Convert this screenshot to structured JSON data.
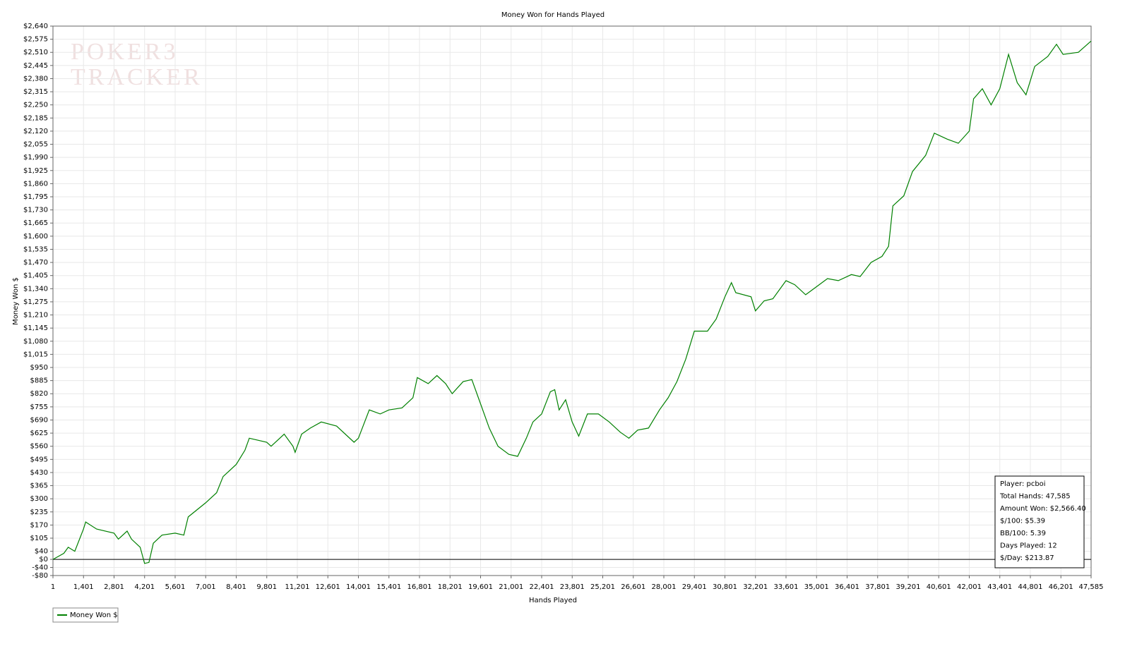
{
  "chart_data": {
    "type": "line",
    "title": "Money Won for Hands Played",
    "watermark": [
      "POKER3",
      "TRACKER"
    ],
    "xlabel": "Hands Played",
    "ylabel": "Money Won $",
    "xlim": [
      1,
      47585
    ],
    "ylim": [
      -80,
      2640
    ],
    "grid": true,
    "legend": "bottom-left",
    "xticks": [
      1,
      {
        "value": 1401,
        "label": "1,401"
      },
      {
        "value": 2801,
        "label": "2,801"
      },
      {
        "value": 4201,
        "label": "4,201"
      },
      {
        "value": 5601,
        "label": "5,601"
      },
      {
        "value": 7001,
        "label": "7,001"
      },
      {
        "value": 8401,
        "label": "8,401"
      },
      {
        "value": 9801,
        "label": "9,801"
      },
      {
        "value": 11201,
        "label": "11,201"
      },
      {
        "value": 12601,
        "label": "12,601"
      },
      {
        "value": 14001,
        "label": "14,001"
      },
      {
        "value": 15401,
        "label": "15,401"
      },
      {
        "value": 16801,
        "label": "16,801"
      },
      {
        "value": 18201,
        "label": "18,201"
      },
      {
        "value": 19601,
        "label": "19,601"
      },
      {
        "value": 21001,
        "label": "21,001"
      },
      {
        "value": 22401,
        "label": "22,401"
      },
      {
        "value": 23801,
        "label": "23,801"
      },
      {
        "value": 25201,
        "label": "25,201"
      },
      {
        "value": 26601,
        "label": "26,601"
      },
      {
        "value": 28001,
        "label": "28,001"
      },
      {
        "value": 29401,
        "label": "29,401"
      },
      {
        "value": 30801,
        "label": "30,801"
      },
      {
        "value": 32201,
        "label": "32,201"
      },
      {
        "value": 33601,
        "label": "33,601"
      },
      {
        "value": 35001,
        "label": "35,001"
      },
      {
        "value": 36401,
        "label": "36,401"
      },
      {
        "value": 37801,
        "label": "37,801"
      },
      {
        "value": 39201,
        "label": "39,201"
      },
      {
        "value": 40601,
        "label": "40,601"
      },
      {
        "value": 42001,
        "label": "42,001"
      },
      {
        "value": 43401,
        "label": "43,401"
      },
      {
        "value": 44801,
        "label": "44,801"
      },
      {
        "value": 46201,
        "label": "46,201"
      },
      {
        "value": 47585,
        "label": "47,585"
      }
    ],
    "yticks": [
      {
        "value": 2640,
        "label": "$2,640"
      },
      {
        "value": 2575,
        "label": "$2,575"
      },
      {
        "value": 2510,
        "label": "$2,510"
      },
      {
        "value": 2445,
        "label": "$2,445"
      },
      {
        "value": 2380,
        "label": "$2,380"
      },
      {
        "value": 2315,
        "label": "$2,315"
      },
      {
        "value": 2250,
        "label": "$2,250"
      },
      {
        "value": 2185,
        "label": "$2,185"
      },
      {
        "value": 2120,
        "label": "$2,120"
      },
      {
        "value": 2055,
        "label": "$2,055"
      },
      {
        "value": 1990,
        "label": "$1,990"
      },
      {
        "value": 1925,
        "label": "$1,925"
      },
      {
        "value": 1860,
        "label": "$1,860"
      },
      {
        "value": 1795,
        "label": "$1,795"
      },
      {
        "value": 1730,
        "label": "$1,730"
      },
      {
        "value": 1665,
        "label": "$1,665"
      },
      {
        "value": 1600,
        "label": "$1,600"
      },
      {
        "value": 1535,
        "label": "$1,535"
      },
      {
        "value": 1470,
        "label": "$1,470"
      },
      {
        "value": 1405,
        "label": "$1,405"
      },
      {
        "value": 1340,
        "label": "$1,340"
      },
      {
        "value": 1275,
        "label": "$1,275"
      },
      {
        "value": 1210,
        "label": "$1,210"
      },
      {
        "value": 1145,
        "label": "$1,145"
      },
      {
        "value": 1080,
        "label": "$1,080"
      },
      {
        "value": 1015,
        "label": "$1,015"
      },
      {
        "value": 950,
        "label": "$950"
      },
      {
        "value": 885,
        "label": "$885"
      },
      {
        "value": 820,
        "label": "$820"
      },
      {
        "value": 755,
        "label": "$755"
      },
      {
        "value": 690,
        "label": "$690"
      },
      {
        "value": 625,
        "label": "$625"
      },
      {
        "value": 560,
        "label": "$560"
      },
      {
        "value": 495,
        "label": "$495"
      },
      {
        "value": 430,
        "label": "$430"
      },
      {
        "value": 365,
        "label": "$365"
      },
      {
        "value": 300,
        "label": "$300"
      },
      {
        "value": 235,
        "label": "$235"
      },
      {
        "value": 170,
        "label": "$170"
      },
      {
        "value": 105,
        "label": "$105"
      },
      {
        "value": 40,
        "label": "$40"
      },
      {
        "value": 0,
        "label": "$0"
      },
      {
        "value": -40,
        "label": "-$40"
      },
      {
        "value": -80,
        "label": "-$80"
      }
    ],
    "x": [
      1,
      500,
      700,
      1000,
      1400,
      1500,
      2000,
      2800,
      3000,
      3400,
      3600,
      4000,
      4200,
      4400,
      4600,
      5000,
      5600,
      6000,
      6200,
      7000,
      7500,
      7800,
      8400,
      8800,
      9000,
      9800,
      10000,
      10600,
      11000,
      11100,
      11400,
      11800,
      12300,
      13000,
      13800,
      14000,
      14500,
      15000,
      15400,
      16000,
      16500,
      16700,
      17200,
      17600,
      18000,
      18300,
      18800,
      19200,
      19500,
      20000,
      20400,
      20900,
      21300,
      21700,
      22000,
      22400,
      22800,
      23000,
      23200,
      23500,
      23800,
      24100,
      24500,
      25000,
      25500,
      26000,
      26400,
      26800,
      27300,
      27800,
      28200,
      28600,
      29000,
      29400,
      30000,
      30400,
      30800,
      31100,
      31300,
      32000,
      32200,
      32600,
      33000,
      33600,
      34000,
      34500,
      35000,
      35500,
      36000,
      36600,
      37000,
      37500,
      38000,
      38300,
      38500,
      39000,
      39400,
      40000,
      40400,
      41000,
      41500,
      42000,
      42200,
      42600,
      43000,
      43400,
      43800,
      44200,
      44600,
      45000,
      45600,
      46000,
      46300,
      47000,
      47585
    ],
    "series": [
      {
        "name": "Money Won $",
        "color": "#008000",
        "values": [
          0,
          30,
          60,
          40,
          150,
          185,
          150,
          130,
          100,
          140,
          100,
          60,
          -20,
          -15,
          80,
          120,
          130,
          120,
          210,
          280,
          330,
          410,
          470,
          540,
          600,
          580,
          560,
          620,
          560,
          530,
          620,
          650,
          680,
          660,
          580,
          600,
          740,
          720,
          740,
          750,
          800,
          900,
          870,
          910,
          870,
          820,
          880,
          890,
          800,
          650,
          560,
          520,
          510,
          600,
          680,
          720,
          830,
          840,
          740,
          790,
          680,
          610,
          720,
          720,
          680,
          630,
          600,
          640,
          650,
          740,
          800,
          880,
          990,
          1130,
          1130,
          1190,
          1300,
          1370,
          1320,
          1300,
          1230,
          1280,
          1290,
          1380,
          1360,
          1310,
          1350,
          1390,
          1380,
          1410,
          1400,
          1470,
          1500,
          1550,
          1750,
          1800,
          1920,
          2000,
          2110,
          2080,
          2060,
          2120,
          2280,
          2330,
          2250,
          2330,
          2500,
          2360,
          2300,
          2440,
          2490,
          2550,
          2500,
          2510,
          2566
        ]
      }
    ],
    "annotations": [
      "Player: pcboi",
      "Total Hands: 47,585",
      "Amount Won: $2,566.40",
      "$/100: $5.39",
      "BB/100: 5.39",
      "Days Played: 12",
      "$/Day: $213.87"
    ]
  }
}
